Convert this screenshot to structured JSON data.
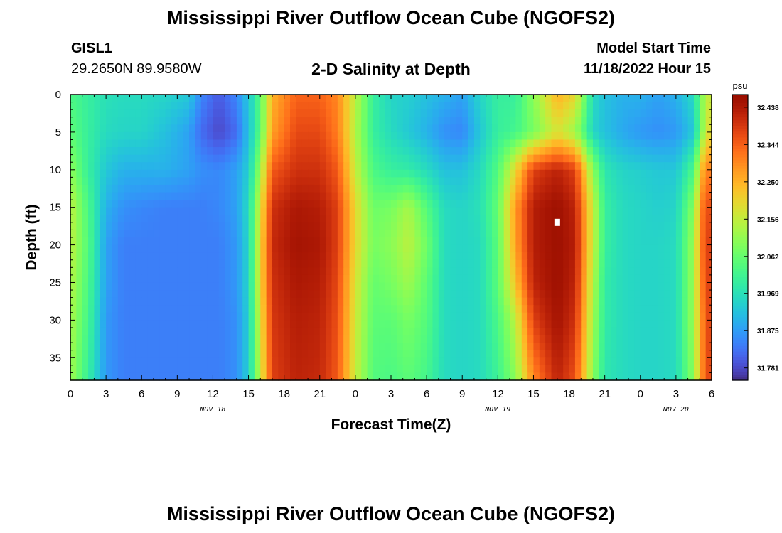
{
  "header": {
    "title": "Mississippi River Outflow Ocean Cube (NGOFS2)",
    "station": "GISL1",
    "coords": "29.2650N  89.9580W",
    "subtitle": "2-D Salinity at Depth",
    "model_start_label": "Model Start Time",
    "model_start_value": "11/18/2022 Hour 15"
  },
  "footer": {
    "title": "Mississippi River Outflow Ocean Cube (NGOFS2)"
  },
  "chart_data": {
    "type": "heatmap",
    "xlabel": "Forecast Time(Z)",
    "ylabel": "Depth (ft)",
    "x_range_hours": [
      0,
      54
    ],
    "y_range_ft": [
      0,
      38
    ],
    "y_inverted": true,
    "x_tick_labels": [
      "0",
      "3",
      "6",
      "9",
      "12",
      "15",
      "18",
      "21",
      "0",
      "3",
      "6",
      "9",
      "12",
      "15",
      "18",
      "21",
      "0",
      "3",
      "6"
    ],
    "y_tick_labels": [
      "0",
      "5",
      "10",
      "15",
      "20",
      "25",
      "30",
      "35"
    ],
    "y_tick_values": [
      0,
      5,
      10,
      15,
      20,
      25,
      30,
      35
    ],
    "date_labels": [
      {
        "text": "NOV 18",
        "hour": 12
      },
      {
        "text": "NOV 19",
        "hour": 36
      },
      {
        "text": "NOV 20",
        "hour": 51
      }
    ],
    "colorbar": {
      "unit": "psu",
      "ticks": [
        "32.438",
        "32.344",
        "32.250",
        "32.156",
        "32.062",
        "31.969",
        "31.875",
        "31.781"
      ],
      "range": [
        31.75,
        32.47
      ],
      "colormap": "turbo"
    },
    "marker": {
      "hour": 41,
      "depth_ft": 17
    },
    "field": {
      "x_hours": [
        0,
        1.5,
        3,
        4.5,
        6,
        8,
        10,
        11,
        12.5,
        14,
        15,
        16,
        17,
        19,
        21,
        22.5,
        24,
        25.5,
        27,
        28.5,
        30,
        31.5,
        33,
        34.5,
        36,
        37.5,
        39,
        41,
        42.5,
        44,
        45,
        46.5,
        48,
        49.5,
        51,
        52.5,
        53.2,
        54
      ],
      "depth_ft": [
        0,
        5,
        10,
        15,
        20,
        25,
        30,
        38
      ],
      "values": [
        [
          32.03,
          32.0,
          31.97,
          31.96,
          31.96,
          31.95,
          31.93,
          31.85,
          31.8,
          31.85,
          31.93,
          32.05,
          32.25,
          32.34,
          32.34,
          32.3,
          32.15,
          32.0,
          31.95,
          31.94,
          31.92,
          31.9,
          31.88,
          31.95,
          32.0,
          32.0,
          32.1,
          32.25,
          32.2,
          31.96,
          31.92,
          31.9,
          31.9,
          31.88,
          31.9,
          31.96,
          32.1,
          32.18
        ],
        [
          32.05,
          32.0,
          31.96,
          31.95,
          31.95,
          31.92,
          31.88,
          31.82,
          31.78,
          31.82,
          31.92,
          32.05,
          32.27,
          32.37,
          32.37,
          32.31,
          32.14,
          32.0,
          31.96,
          31.93,
          31.9,
          31.86,
          31.85,
          31.93,
          32.0,
          32.02,
          32.08,
          32.18,
          32.12,
          31.95,
          31.92,
          31.89,
          31.87,
          31.86,
          31.87,
          31.93,
          32.1,
          32.22
        ],
        [
          32.1,
          32.0,
          31.93,
          31.9,
          31.9,
          31.9,
          31.88,
          31.86,
          31.85,
          31.88,
          31.94,
          32.12,
          32.35,
          32.4,
          32.4,
          32.35,
          32.16,
          32.03,
          32.0,
          31.99,
          31.96,
          31.92,
          31.92,
          31.96,
          32.04,
          32.2,
          32.38,
          32.42,
          32.38,
          32.1,
          31.98,
          31.95,
          31.94,
          31.93,
          31.93,
          32.03,
          32.25,
          32.33
        ],
        [
          32.15,
          32.03,
          31.9,
          31.86,
          31.85,
          31.84,
          31.84,
          31.84,
          31.85,
          31.88,
          31.96,
          32.18,
          32.4,
          32.44,
          32.43,
          32.38,
          32.2,
          32.07,
          32.08,
          32.13,
          32.04,
          31.96,
          31.95,
          31.97,
          32.06,
          32.28,
          32.43,
          32.46,
          32.42,
          32.16,
          32.0,
          31.96,
          31.95,
          31.94,
          31.95,
          32.1,
          32.32,
          32.38
        ],
        [
          32.15,
          32.04,
          31.88,
          31.84,
          31.84,
          31.84,
          31.84,
          31.84,
          31.84,
          31.87,
          31.95,
          32.2,
          32.41,
          32.45,
          32.44,
          32.38,
          32.2,
          32.08,
          32.1,
          32.15,
          32.07,
          31.96,
          31.95,
          31.96,
          32.05,
          32.27,
          32.43,
          32.46,
          32.43,
          32.16,
          32.0,
          31.96,
          31.95,
          31.95,
          31.96,
          32.12,
          32.33,
          32.4
        ],
        [
          32.14,
          32.03,
          31.88,
          31.84,
          31.84,
          31.84,
          31.84,
          31.84,
          31.84,
          31.87,
          31.95,
          32.2,
          32.4,
          32.44,
          32.43,
          32.37,
          32.18,
          32.06,
          32.08,
          32.12,
          32.05,
          31.96,
          31.95,
          31.96,
          32.05,
          32.23,
          32.42,
          32.46,
          32.42,
          32.14,
          31.99,
          31.96,
          31.95,
          31.95,
          31.96,
          32.12,
          32.32,
          32.4
        ],
        [
          32.13,
          32.02,
          31.87,
          31.84,
          31.84,
          31.84,
          31.84,
          31.84,
          31.84,
          31.86,
          31.94,
          32.18,
          32.39,
          32.43,
          32.42,
          32.36,
          32.17,
          32.05,
          32.05,
          32.08,
          32.04,
          31.96,
          31.95,
          31.96,
          32.03,
          32.15,
          32.38,
          32.45,
          32.4,
          32.12,
          31.99,
          31.96,
          31.95,
          31.95,
          31.96,
          32.12,
          32.3,
          32.4
        ],
        [
          32.12,
          32.0,
          31.87,
          31.84,
          31.84,
          31.84,
          31.84,
          31.84,
          31.84,
          31.86,
          31.94,
          32.16,
          32.38,
          32.42,
          32.41,
          32.35,
          32.16,
          32.04,
          32.03,
          32.05,
          32.02,
          31.96,
          31.95,
          31.96,
          32.01,
          32.1,
          32.3,
          32.42,
          32.36,
          32.1,
          31.98,
          31.96,
          31.95,
          31.95,
          31.96,
          32.1,
          32.3,
          32.4
        ]
      ]
    }
  }
}
